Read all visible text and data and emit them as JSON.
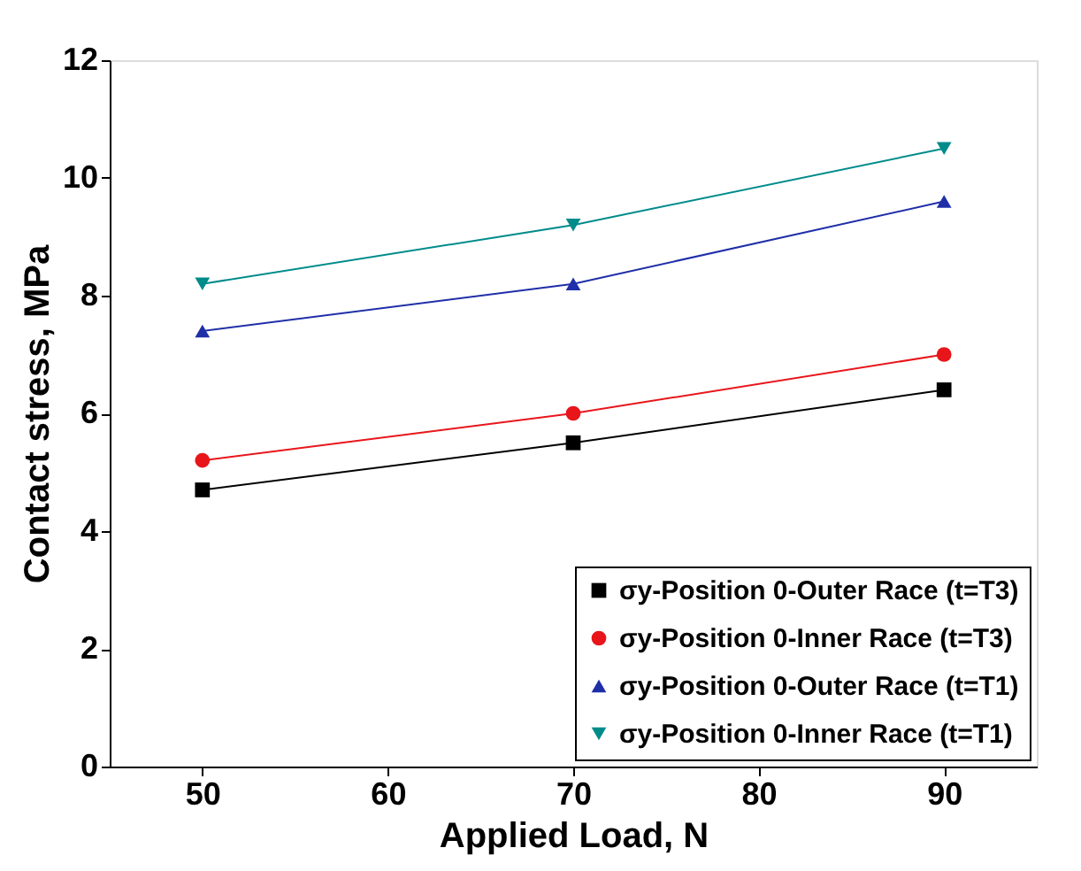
{
  "chart_data": {
    "type": "line",
    "xlabel": "Applied Load, N",
    "ylabel": "Contact stress, MPa",
    "x": [
      50,
      70,
      90
    ],
    "series": [
      {
        "name": "σy-Position 0-Outer Race (t=T3)",
        "color": "#000000",
        "marker": "square",
        "values": [
          4.7,
          5.5,
          6.4
        ]
      },
      {
        "name": "σy-Position 0-Inner Race (t=T3)",
        "color": "#e8161b",
        "marker": "circle",
        "values": [
          5.2,
          6.0,
          7.0
        ]
      },
      {
        "name": "σy-Position 0-Outer Race (t=T1)",
        "color": "#1f2fa8",
        "marker": "triangle",
        "values": [
          7.4,
          8.2,
          9.6
        ]
      },
      {
        "name": "σy-Position 0-Inner Race (t=T1)",
        "color": "#008b8b",
        "marker": "triangle-down",
        "values": [
          8.2,
          9.2,
          10.5
        ]
      }
    ],
    "xlim": [
      45,
      95
    ],
    "xticks": [
      50,
      60,
      70,
      80,
      90
    ],
    "ylim": [
      0,
      12
    ],
    "yticks": [
      0,
      2,
      4,
      6,
      8,
      10,
      12
    ],
    "grid": false,
    "legend": "bottom right",
    "line_style": "solid"
  }
}
